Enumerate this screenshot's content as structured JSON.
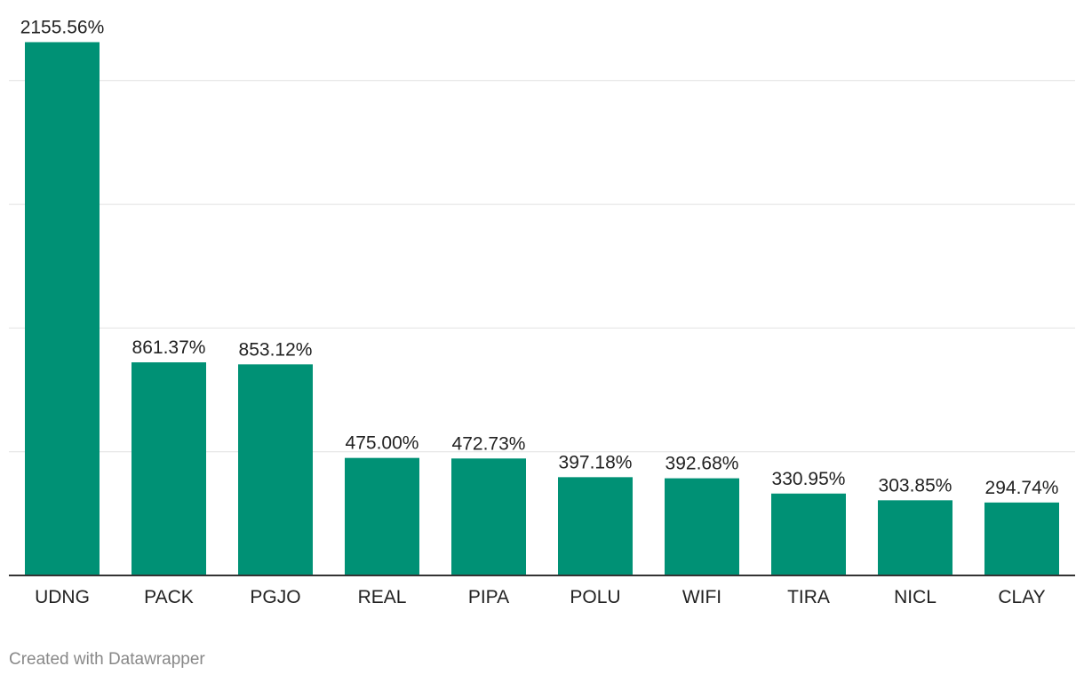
{
  "chart_data": {
    "type": "bar",
    "categories": [
      "UDNG",
      "PACK",
      "PGJO",
      "REAL",
      "PIPA",
      "POLU",
      "WIFI",
      "TIRA",
      "NICL",
      "CLAY"
    ],
    "values": [
      2155.56,
      861.37,
      853.12,
      475.0,
      472.73,
      397.18,
      392.68,
      330.95,
      303.85,
      294.74
    ],
    "value_labels": [
      "2155.56%",
      "861.37%",
      "853.12%",
      "475.00%",
      "472.73%",
      "397.18%",
      "392.68%",
      "330.95%",
      "303.85%",
      "294.74%"
    ],
    "ylim": [
      0,
      2500
    ],
    "gridlines": [
      500,
      1000,
      1500,
      2000
    ],
    "grid": true,
    "bar_color": "#009175",
    "grid_color": "#e2e2e2",
    "axis_color": "#333333"
  },
  "footer": {
    "credit": "Created with Datawrapper"
  }
}
